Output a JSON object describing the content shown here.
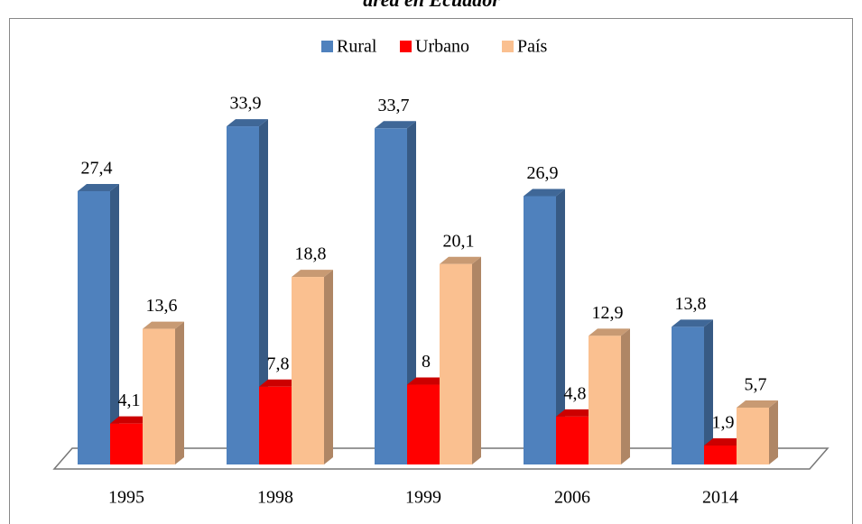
{
  "chart_data": {
    "type": "bar3d",
    "title": "área en Ecuador",
    "categories": [
      "1995",
      "1998",
      "1999",
      "2006",
      "2014"
    ],
    "series": [
      {
        "name": "Rural",
        "color": "#4f81bd",
        "values": [
          27.4,
          33.9,
          33.7,
          26.9,
          13.8
        ],
        "value_labels": [
          "27,4",
          "33,9",
          "33,7",
          "26,9",
          "13,8"
        ]
      },
      {
        "name": "Urbano",
        "color": "#ff0000",
        "values": [
          4.1,
          7.8,
          8,
          4.8,
          1.9
        ],
        "value_labels": [
          "4,1",
          "7,8",
          "8",
          "4,8",
          "1,9"
        ]
      },
      {
        "name": "País",
        "color": "#fac090",
        "values": [
          13.6,
          18.8,
          20.1,
          12.9,
          5.7
        ],
        "value_labels": [
          "13,6",
          "18,8",
          "20,1",
          "12,9",
          "5,7"
        ]
      }
    ],
    "legend": "top"
  }
}
